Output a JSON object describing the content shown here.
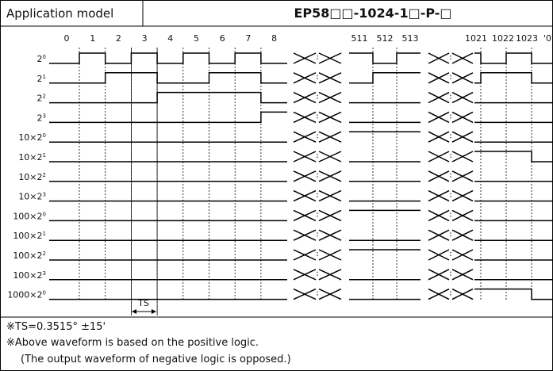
{
  "header": {
    "label": "Application model",
    "model": "EP58□□-1024-1□-P-□"
  },
  "columns": [
    "0",
    "1",
    "2",
    "3",
    "4",
    "5",
    "6",
    "7",
    "8",
    "511",
    "512",
    "513",
    "1021",
    "1022",
    "1023",
    "'0"
  ],
  "rows": [
    {
      "base": "2",
      "exp": "0"
    },
    {
      "base": "2",
      "exp": "1"
    },
    {
      "base": "2",
      "exp": "2"
    },
    {
      "base": "2",
      "exp": "3"
    },
    {
      "base": "10×2",
      "exp": "0"
    },
    {
      "base": "10×2",
      "exp": "1"
    },
    {
      "base": "10×2",
      "exp": "2"
    },
    {
      "base": "10×2",
      "exp": "3"
    },
    {
      "base": "100×2",
      "exp": "0"
    },
    {
      "base": "100×2",
      "exp": "1"
    },
    {
      "base": "100×2",
      "exp": "2"
    },
    {
      "base": "100×2",
      "exp": "3"
    },
    {
      "base": "1000×2",
      "exp": "0"
    }
  ],
  "timing_label": "TS",
  "notes": [
    "※TS=0.3515° ±15'",
    "※Above waveform is based on the positive logic.",
    "(The output waveform of negative logic is opposed.)"
  ]
}
